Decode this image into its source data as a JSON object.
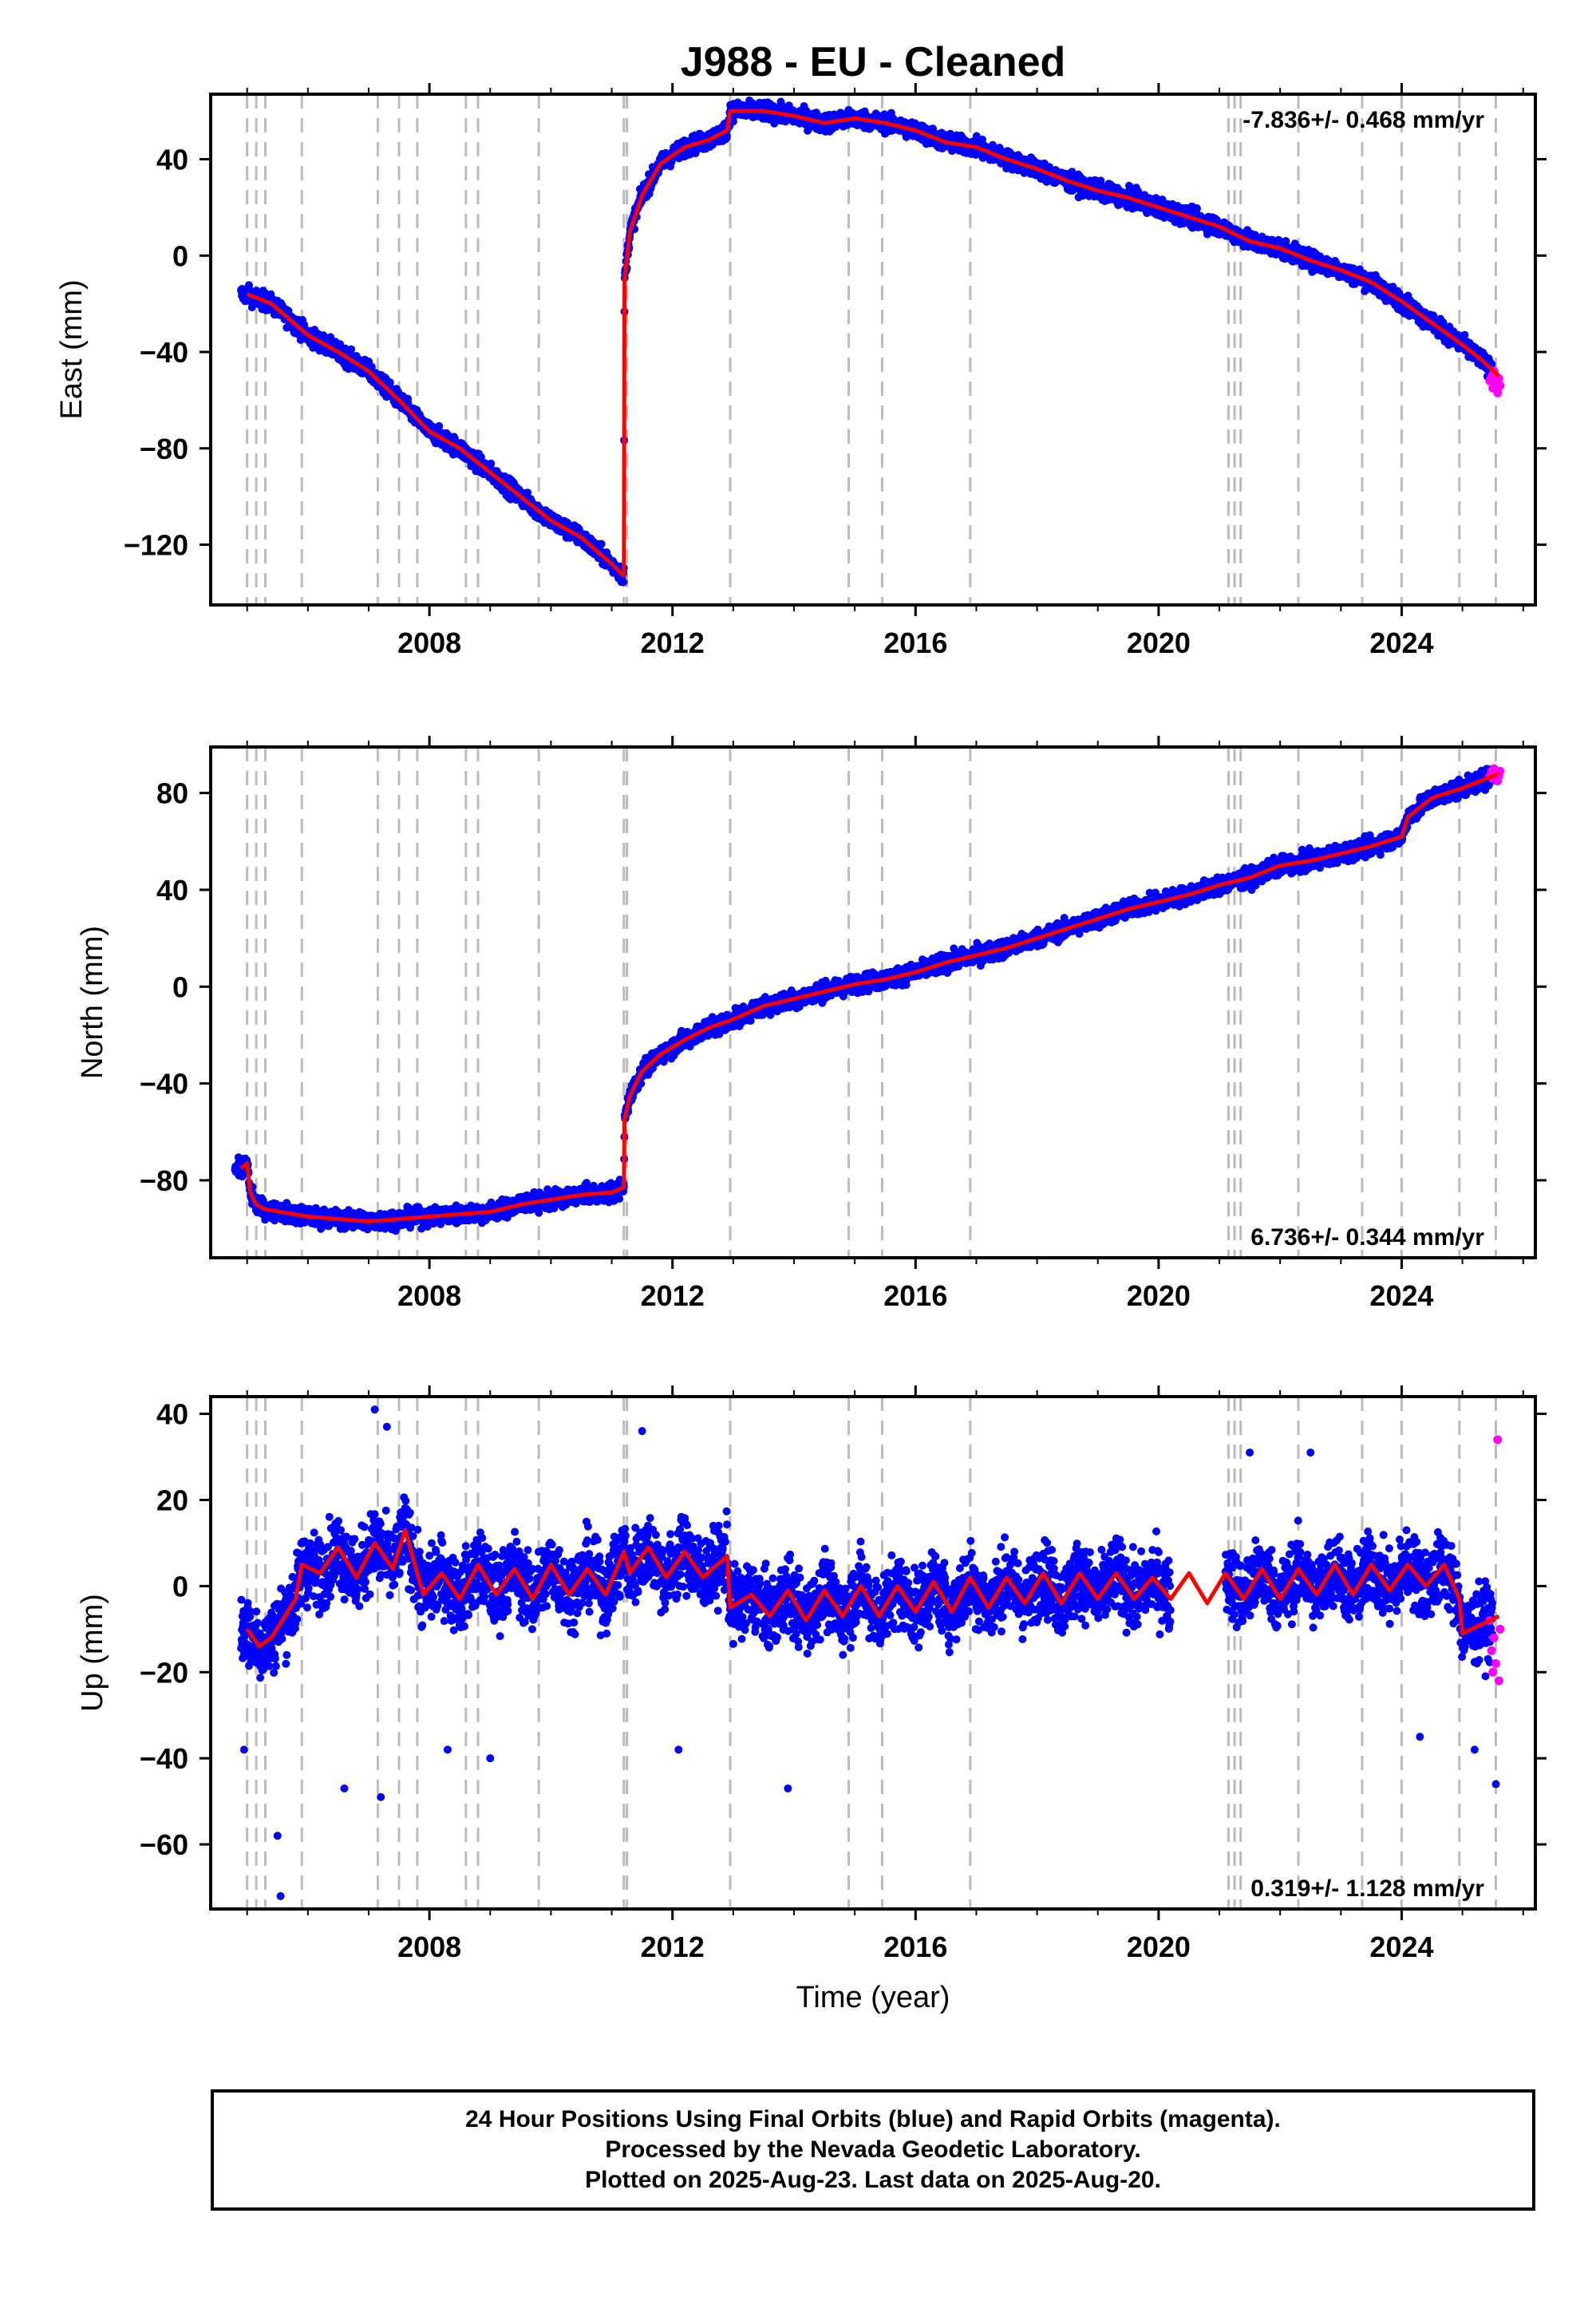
{
  "title": "J988  - EU - Cleaned",
  "colors": {
    "final_points": "#0000ff",
    "rapid_points": "#ff00ff",
    "model": "#ff0000",
    "event_lines": "#bbbbbb",
    "frame": "#000000"
  },
  "x_axis": {
    "label": "Time (year)",
    "range": [
      2004.4,
      2026.2
    ],
    "tick_labels": [
      "2008",
      "2012",
      "2016",
      "2020",
      "2024"
    ],
    "ticks": [
      2008,
      2012,
      2016,
      2020,
      2024
    ],
    "minor_ticks": [
      2005,
      2006,
      2007,
      2009,
      2010,
      2011,
      2013,
      2014,
      2015,
      2017,
      2018,
      2019,
      2021,
      2022,
      2023,
      2025,
      2026
    ]
  },
  "event_lines": [
    2005.0,
    2005.15,
    2005.3,
    2005.9,
    2007.15,
    2007.5,
    2007.8,
    2008.6,
    2008.8,
    2009.8,
    2011.2,
    2011.25,
    2012.95,
    2014.9,
    2015.45,
    2016.9,
    2021.15,
    2021.25,
    2021.35,
    2022.3,
    2023.35,
    2024.0,
    2024.95,
    2025.55
  ],
  "footer": {
    "line1": "24 Hour Positions Using Final Orbits (blue) and Rapid Orbits (magenta).",
    "line2": "Processed by the Nevada Geodetic Laboratory.",
    "line3": "Plotted on 2025-Aug-23. Last data on 2025-Aug-20."
  },
  "panels": [
    {
      "ylabel": "East (mm)",
      "rate_text": "-7.836+/- 0.468 mm/yr",
      "rate_position": "top-right",
      "ylim": [
        -145,
        67
      ],
      "tick_labels": [
        "40",
        "0",
        "−40",
        "−80",
        "−120"
      ],
      "ticks": [
        40,
        0,
        -40,
        -80,
        -120
      ]
    },
    {
      "ylabel": "North (mm)",
      "rate_text": "6.736+/- 0.344 mm/yr",
      "rate_position": "bottom-right",
      "ylim": [
        -112,
        99
      ],
      "tick_labels": [
        "80",
        "40",
        "0",
        "−40",
        "−80"
      ],
      "ticks": [
        80,
        40,
        0,
        -40,
        -80
      ]
    },
    {
      "ylabel": "Up (mm)",
      "rate_text": "0.319+/- 1.128 mm/yr",
      "rate_position": "bottom-right",
      "ylim": [
        -75,
        44
      ],
      "tick_labels": [
        "40",
        "20",
        "0",
        "−20",
        "−40",
        "−60"
      ],
      "ticks": [
        40,
        20,
        0,
        -20,
        -40,
        -60
      ]
    }
  ],
  "chart_data": [
    {
      "type": "scatter",
      "title": "J988  - EU - Cleaned",
      "xlabel": "",
      "ylabel": "East (mm)",
      "xlim": [
        2004.4,
        2026.2
      ],
      "ylim": [
        -145,
        67
      ],
      "scatter_noise": 3,
      "model": {
        "x": [
          2005.0,
          2005.3,
          2005.4,
          2006.0,
          2006.5,
          2007.0,
          2007.5,
          2008.0,
          2008.5,
          2009.0,
          2009.5,
          2010.0,
          2010.5,
          2011.0,
          2011.2,
          2011.21,
          2011.3,
          2011.5,
          2011.8,
          2012.2,
          2012.6,
          2012.9,
          2012.95,
          2013.5,
          2014.0,
          2014.5,
          2015.0,
          2015.5,
          2016.0,
          2016.5,
          2017.0,
          2017.5,
          2018.0,
          2018.5,
          2019.0,
          2019.5,
          2020.0,
          2020.5,
          2021.0,
          2021.5,
          2022.0,
          2022.5,
          2023.0,
          2023.5,
          2024.0,
          2024.5,
          2025.0,
          2025.3,
          2025.6
        ],
        "y": [
          -16,
          -19,
          -20,
          -33,
          -40,
          -48,
          -60,
          -73,
          -80,
          -90,
          -100,
          -110,
          -117,
          -128,
          -133,
          -10,
          10,
          25,
          38,
          45,
          48,
          52,
          60,
          60,
          58,
          55,
          57,
          55,
          52,
          47,
          45,
          40,
          36,
          31,
          27,
          24,
          20,
          16,
          12,
          6,
          3,
          -2,
          -6,
          -11,
          -19,
          -28,
          -37,
          -43,
          -50
        ]
      },
      "rapid": {
        "x": [
          2025.45,
          2025.48,
          2025.5,
          2025.52,
          2025.55,
          2025.58,
          2025.6,
          2025.62
        ],
        "y": [
          -52,
          -50,
          -55,
          -48,
          -53,
          -57,
          -51,
          -54
        ]
      }
    },
    {
      "type": "scatter",
      "title": "",
      "xlabel": "",
      "ylabel": "North (mm)",
      "xlim": [
        2004.4,
        2026.2
      ],
      "ylim": [
        -112,
        99
      ],
      "scatter_noise": 3,
      "model": {
        "x": [
          2004.9,
          2005.0,
          2005.05,
          2005.15,
          2005.3,
          2006.0,
          2006.5,
          2007.0,
          2007.5,
          2008.0,
          2008.5,
          2009.0,
          2009.5,
          2010.0,
          2010.5,
          2011.0,
          2011.2,
          2011.21,
          2011.3,
          2011.5,
          2011.8,
          2012.2,
          2012.6,
          2012.95,
          2013.5,
          2014.0,
          2014.5,
          2015.0,
          2015.5,
          2016.0,
          2016.5,
          2017.0,
          2017.5,
          2018.0,
          2018.5,
          2019.0,
          2019.5,
          2020.0,
          2020.5,
          2021.0,
          2021.5,
          2022.0,
          2022.5,
          2023.0,
          2023.5,
          2024.0,
          2024.1,
          2024.5,
          2025.0,
          2025.6
        ],
        "y": [
          -75,
          -73,
          -85,
          -90,
          -92,
          -95,
          -96,
          -97,
          -96,
          -95,
          -94,
          -93,
          -90,
          -88,
          -86,
          -85,
          -83,
          -55,
          -45,
          -35,
          -28,
          -22,
          -17,
          -14,
          -8,
          -5,
          -2,
          1,
          3,
          6,
          10,
          13,
          16,
          20,
          24,
          28,
          32,
          35,
          38,
          42,
          45,
          50,
          52,
          55,
          58,
          62,
          70,
          78,
          82,
          88
        ]
      },
      "rapid": {
        "x": [
          2025.45,
          2025.48,
          2025.5,
          2025.52,
          2025.55,
          2025.58,
          2025.6,
          2025.62
        ],
        "y": [
          87,
          89,
          86,
          90,
          88,
          85,
          87,
          89
        ]
      }
    },
    {
      "type": "scatter",
      "title": "",
      "xlabel": "Time (year)",
      "ylabel": "Up (mm)",
      "xlim": [
        2004.4,
        2026.2
      ],
      "ylim": [
        -75,
        44
      ],
      "scatter_noise": 7,
      "gaps": [
        [
          2020.2,
          2021.1
        ]
      ],
      "model": {
        "x": [
          2005.0,
          2005.2,
          2005.4,
          2005.8,
          2005.9,
          2006.2,
          2006.5,
          2006.8,
          2007.1,
          2007.4,
          2007.6,
          2007.9,
          2008.2,
          2008.5,
          2008.8,
          2009.1,
          2009.4,
          2009.7,
          2010.0,
          2010.3,
          2010.6,
          2010.9,
          2011.2,
          2011.3,
          2011.6,
          2011.9,
          2012.2,
          2012.5,
          2012.9,
          2012.95,
          2013.3,
          2013.6,
          2013.9,
          2014.2,
          2014.5,
          2014.8,
          2015.1,
          2015.4,
          2015.7,
          2016.0,
          2016.3,
          2016.6,
          2016.9,
          2017.2,
          2017.5,
          2017.8,
          2018.1,
          2018.4,
          2018.7,
          2019.0,
          2019.3,
          2019.6,
          2019.9,
          2020.2,
          2020.5,
          2020.8,
          2021.1,
          2021.4,
          2021.7,
          2022.0,
          2022.3,
          2022.6,
          2022.9,
          2023.2,
          2023.5,
          2023.8,
          2024.1,
          2024.4,
          2024.7,
          2024.95,
          2025.0,
          2025.3,
          2025.6
        ],
        "y": [
          -10,
          -14,
          -12,
          -3,
          5,
          3,
          9,
          2,
          10,
          4,
          13,
          -2,
          3,
          -3,
          5,
          -2,
          4,
          -3,
          5,
          -2,
          4,
          -2,
          8,
          3,
          9,
          2,
          8,
          2,
          7,
          -5,
          -2,
          -7,
          -1,
          -8,
          -1,
          -7,
          0,
          -7,
          0,
          -6,
          1,
          -6,
          2,
          -5,
          2,
          -4,
          3,
          -4,
          3,
          -3,
          3,
          -3,
          2,
          -3,
          3,
          -4,
          3,
          -3,
          4,
          -3,
          4,
          -2,
          5,
          -2,
          5,
          -1,
          5,
          0,
          5,
          -3,
          -11,
          -9,
          -7
        ]
      },
      "outliers": {
        "x": [
          2004.95,
          2005.5,
          2005.55,
          2006.6,
          2007.1,
          2007.2,
          2007.3,
          2008.3,
          2009.0,
          2011.5,
          2012.1,
          2013.9,
          2021.5,
          2022.5,
          2024.3,
          2025.2,
          2025.55
        ],
        "y": [
          -38,
          -58,
          -72,
          -47,
          41,
          -49,
          37,
          -38,
          -40,
          36,
          -38,
          -47,
          31,
          31,
          -35,
          -38,
          -46
        ]
      },
      "rapid": {
        "x": [
          2025.45,
          2025.48,
          2025.5,
          2025.52,
          2025.55,
          2025.58,
          2025.6,
          2025.62
        ],
        "y": [
          -8,
          -15,
          -20,
          -12,
          -18,
          34,
          -22,
          -10
        ]
      }
    }
  ]
}
